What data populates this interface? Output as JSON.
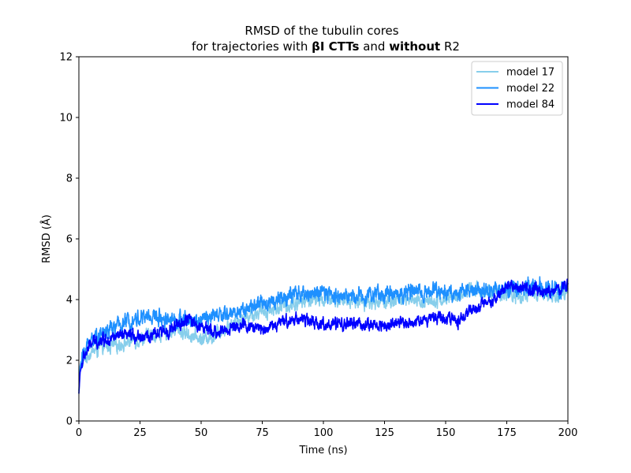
{
  "chart_data": {
    "type": "line",
    "title_line1": "RMSD of the tubulin cores",
    "title_line2": {
      "part1": "for trajectories with ",
      "bold1": "βI CTTs",
      "part2": " and ",
      "bold2": "without",
      "part3": " R2"
    },
    "xlabel": "Time (ns)",
    "ylabel": "RMSD (Å)",
    "xlim": [
      0,
      200
    ],
    "ylim": [
      0,
      12
    ],
    "xticks": [
      0,
      25,
      50,
      75,
      100,
      125,
      150,
      175,
      200
    ],
    "yticks": [
      0,
      2,
      4,
      6,
      8,
      10,
      12
    ],
    "grid": false,
    "legend_position": "top-right",
    "series": [
      {
        "name": "model 17",
        "color": "#87ceeb",
        "noise": 0.16,
        "points": [
          [
            0,
            0.9
          ],
          [
            0.5,
            1.7
          ],
          [
            2,
            2.0
          ],
          [
            5,
            2.3
          ],
          [
            10,
            2.4
          ],
          [
            15,
            2.5
          ],
          [
            20,
            2.6
          ],
          [
            25,
            2.7
          ],
          [
            30,
            2.8
          ],
          [
            35,
            2.9
          ],
          [
            40,
            3.0
          ],
          [
            45,
            2.85
          ],
          [
            50,
            2.7
          ],
          [
            55,
            2.8
          ],
          [
            60,
            3.1
          ],
          [
            65,
            3.3
          ],
          [
            70,
            3.5
          ],
          [
            75,
            3.6
          ],
          [
            80,
            3.7
          ],
          [
            85,
            3.8
          ],
          [
            90,
            3.9
          ],
          [
            95,
            4.0
          ],
          [
            100,
            4.0
          ],
          [
            105,
            4.0
          ],
          [
            110,
            4.0
          ],
          [
            115,
            3.95
          ],
          [
            120,
            3.9
          ],
          [
            125,
            3.95
          ],
          [
            130,
            4.0
          ],
          [
            135,
            3.95
          ],
          [
            140,
            3.9
          ],
          [
            145,
            4.0
          ],
          [
            150,
            4.0
          ],
          [
            155,
            4.1
          ],
          [
            160,
            4.3
          ],
          [
            165,
            4.3
          ],
          [
            170,
            4.2
          ],
          [
            175,
            4.2
          ],
          [
            180,
            4.1
          ],
          [
            185,
            4.2
          ],
          [
            190,
            4.2
          ],
          [
            195,
            4.1
          ],
          [
            200,
            4.3
          ]
        ]
      },
      {
        "name": "model 22",
        "color": "#1e90ff",
        "noise": 0.18,
        "points": [
          [
            0,
            1.0
          ],
          [
            0.5,
            1.8
          ],
          [
            2,
            2.3
          ],
          [
            5,
            2.7
          ],
          [
            10,
            2.9
          ],
          [
            15,
            3.1
          ],
          [
            20,
            3.3
          ],
          [
            25,
            3.4
          ],
          [
            30,
            3.45
          ],
          [
            35,
            3.4
          ],
          [
            40,
            3.35
          ],
          [
            45,
            3.3
          ],
          [
            50,
            3.35
          ],
          [
            55,
            3.45
          ],
          [
            60,
            3.5
          ],
          [
            65,
            3.6
          ],
          [
            70,
            3.75
          ],
          [
            75,
            3.85
          ],
          [
            80,
            4.0
          ],
          [
            85,
            4.1
          ],
          [
            90,
            4.15
          ],
          [
            95,
            4.2
          ],
          [
            100,
            4.2
          ],
          [
            105,
            4.15
          ],
          [
            110,
            4.1
          ],
          [
            115,
            4.15
          ],
          [
            120,
            4.2
          ],
          [
            125,
            4.15
          ],
          [
            130,
            4.2
          ],
          [
            135,
            4.25
          ],
          [
            140,
            4.25
          ],
          [
            145,
            4.3
          ],
          [
            150,
            4.25
          ],
          [
            155,
            4.2
          ],
          [
            160,
            4.3
          ],
          [
            165,
            4.35
          ],
          [
            170,
            4.3
          ],
          [
            175,
            4.3
          ],
          [
            180,
            4.35
          ],
          [
            185,
            4.45
          ],
          [
            190,
            4.35
          ],
          [
            195,
            4.3
          ],
          [
            200,
            4.45
          ]
        ]
      },
      {
        "name": "model 84",
        "color": "#0000ff",
        "noise": 0.14,
        "points": [
          [
            0,
            0.9
          ],
          [
            0.5,
            1.6
          ],
          [
            2,
            2.1
          ],
          [
            5,
            2.55
          ],
          [
            10,
            2.7
          ],
          [
            15,
            2.75
          ],
          [
            20,
            2.8
          ],
          [
            25,
            2.8
          ],
          [
            30,
            2.8
          ],
          [
            35,
            2.95
          ],
          [
            40,
            3.1
          ],
          [
            45,
            3.35
          ],
          [
            50,
            3.1
          ],
          [
            55,
            2.9
          ],
          [
            60,
            3.0
          ],
          [
            65,
            3.15
          ],
          [
            70,
            3.1
          ],
          [
            75,
            3.05
          ],
          [
            80,
            3.15
          ],
          [
            85,
            3.3
          ],
          [
            90,
            3.4
          ],
          [
            95,
            3.25
          ],
          [
            100,
            3.2
          ],
          [
            105,
            3.15
          ],
          [
            110,
            3.2
          ],
          [
            115,
            3.2
          ],
          [
            120,
            3.15
          ],
          [
            125,
            3.15
          ],
          [
            130,
            3.2
          ],
          [
            135,
            3.25
          ],
          [
            140,
            3.3
          ],
          [
            145,
            3.45
          ],
          [
            150,
            3.4
          ],
          [
            155,
            3.3
          ],
          [
            160,
            3.6
          ],
          [
            165,
            3.8
          ],
          [
            170,
            3.9
          ],
          [
            175,
            4.5
          ],
          [
            180,
            4.35
          ],
          [
            185,
            4.3
          ],
          [
            190,
            4.25
          ],
          [
            195,
            4.3
          ],
          [
            200,
            4.5
          ]
        ]
      }
    ]
  }
}
